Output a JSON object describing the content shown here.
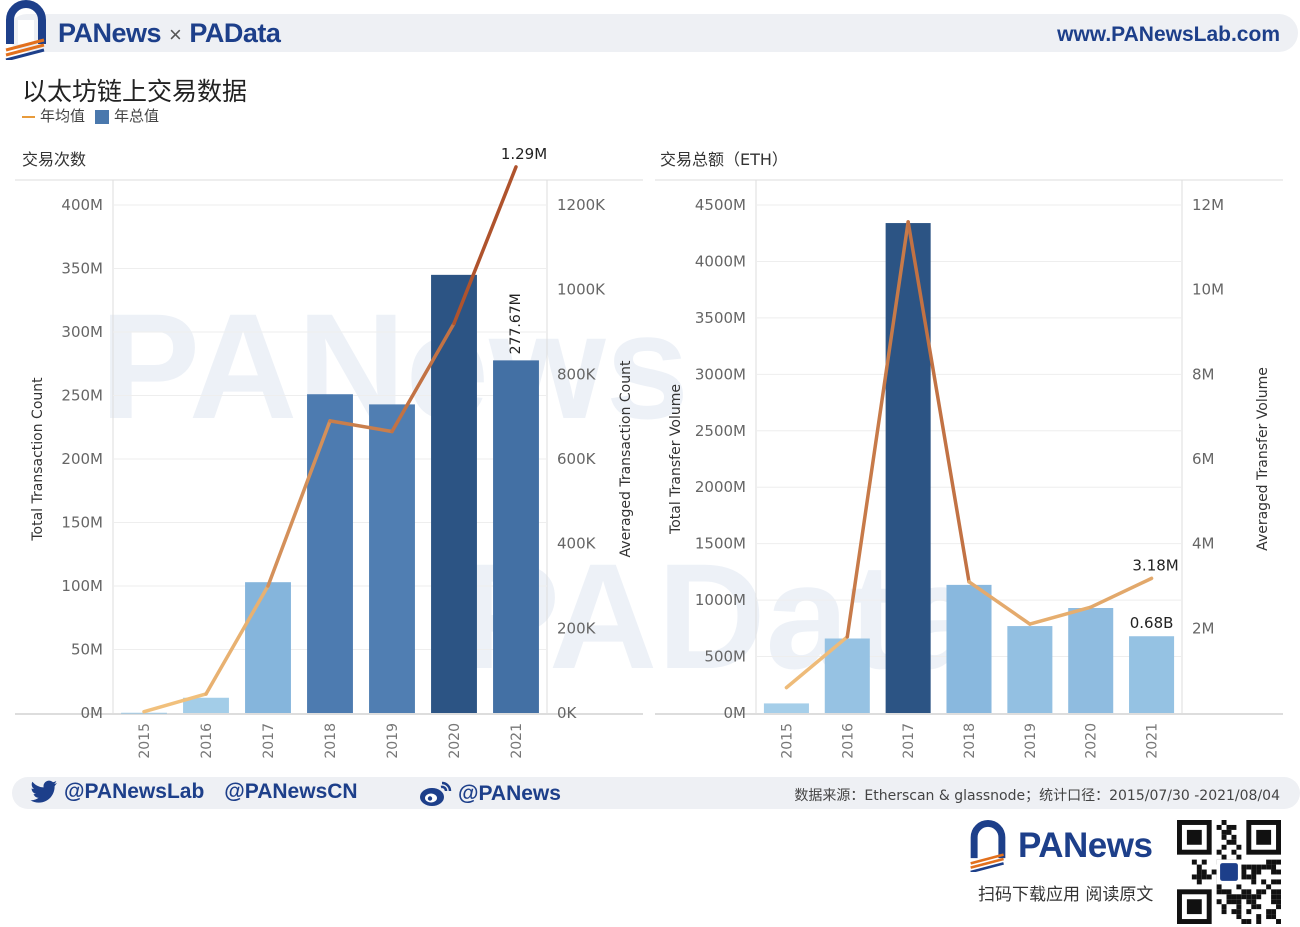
{
  "header": {
    "brand_1": "PANews",
    "brand_sep": "×",
    "brand_2": "PAData",
    "website": "www.PANewsLab.com"
  },
  "title": "以太坊链上交易数据",
  "legend": {
    "line_label": "年均值",
    "bar_label": "年总值"
  },
  "colors": {
    "bar_light": "#a7d0ea",
    "bar_mid": "#7fb0da",
    "bar_dark": "#4a78ad",
    "bar_darkest": "#2c5484",
    "line_light": "#f2c27e",
    "line_dark": "#a4401f",
    "brand_blue": "#1d3f8a",
    "brand_orange": "#e2701d"
  },
  "chart_data": [
    {
      "type": "bar",
      "subtitle": "交易次数",
      "categories": [
        "2015",
        "2016",
        "2017",
        "2018",
        "2019",
        "2020",
        "2021"
      ],
      "series": [
        {
          "values": [
            0.2,
            12,
            103,
            251,
            243,
            345,
            277.67
          ],
          "axis": "left"
        },
        {
          "type": "line",
          "values": [
            3,
            45,
            300,
            690,
            665,
            920,
            1290
          ],
          "axis": "right"
        }
      ],
      "ylabel": "Total Transaction Count",
      "y2label": "Averaged Transaction Count",
      "ylim": [
        0,
        400
      ],
      "y2lim": [
        0,
        1200
      ],
      "yticks": [
        "0M",
        "50M",
        "100M",
        "150M",
        "200M",
        "250M",
        "300M",
        "350M",
        "400M"
      ],
      "y2ticks": [
        "0K",
        "200K",
        "400K",
        "600K",
        "800K",
        "1000K",
        "1200K"
      ],
      "annotations": [
        {
          "text": "1.29M",
          "series": 1,
          "index": 6
        },
        {
          "text": "277.67M",
          "series": 0,
          "index": 6
        }
      ]
    },
    {
      "type": "bar",
      "subtitle": "交易总额（ETH）",
      "categories": [
        "2015",
        "2016",
        "2017",
        "2018",
        "2019",
        "2020",
        "2021"
      ],
      "series": [
        {
          "values": [
            85,
            660,
            4340,
            1135,
            770,
            930,
            680
          ],
          "axis": "left"
        },
        {
          "type": "line",
          "values": [
            0.6,
            1.8,
            11.6,
            3.1,
            2.1,
            2.5,
            3.18
          ],
          "axis": "right"
        }
      ],
      "ylabel": "Total Transfer Volume",
      "y2label": "Averaged Transfer Volume",
      "ylim": [
        0,
        4500
      ],
      "y2lim": [
        0,
        12
      ],
      "yticks": [
        "0M",
        "500M",
        "1000M",
        "1500M",
        "2000M",
        "2500M",
        "3000M",
        "3500M",
        "4000M",
        "4500M"
      ],
      "y2ticks": [
        "2M",
        "4M",
        "6M",
        "8M",
        "10M",
        "12M"
      ],
      "annotations": [
        {
          "text": "3.18M",
          "series": 1,
          "index": 6
        },
        {
          "text": "0.68B",
          "series": 0,
          "index": 6
        }
      ]
    }
  ],
  "footer": {
    "twitter_1": "@PANewsLab",
    "twitter_2": "@PANewsCN",
    "weibo": "@PANews",
    "source": "数据来源：Etherscan & glassnode；统计口径：2015/07/30 -2021/08/04",
    "brand": "PANews",
    "cta": "扫码下载应用  阅读原文"
  }
}
